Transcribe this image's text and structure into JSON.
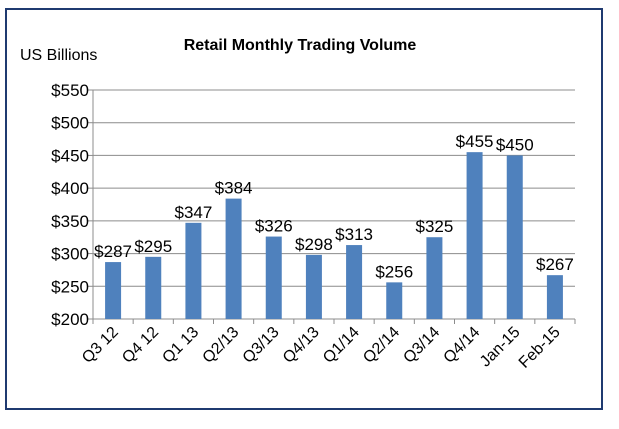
{
  "chart_data": {
    "type": "bar",
    "title": "Retail Monthly Trading Volume",
    "unit_label": "US Billions",
    "categories": [
      "Q3 12",
      "Q4 12",
      "Q1 13",
      "Q2/13",
      "Q3/13",
      "Q4/13",
      "Q1/14",
      "Q2/14",
      "Q3/14",
      "Q4/14",
      "Jan-15",
      "Feb-15"
    ],
    "values": [
      287,
      295,
      347,
      384,
      326,
      298,
      313,
      256,
      325,
      455,
      450,
      267
    ],
    "data_labels": [
      "$287",
      "$295",
      "$347",
      "$384",
      "$326",
      "$298",
      "$313",
      "$256",
      "$325",
      "$455",
      "$450",
      "$267"
    ],
    "yticks": [
      200,
      250,
      300,
      350,
      400,
      450,
      500,
      550
    ],
    "ytick_labels": [
      "$200",
      "$250",
      "$300",
      "$350",
      "$400",
      "$450",
      "$500",
      "$550"
    ],
    "ylim": [
      200,
      550
    ],
    "grid": true,
    "legend": "none",
    "bar_color": "#4f81bd"
  }
}
